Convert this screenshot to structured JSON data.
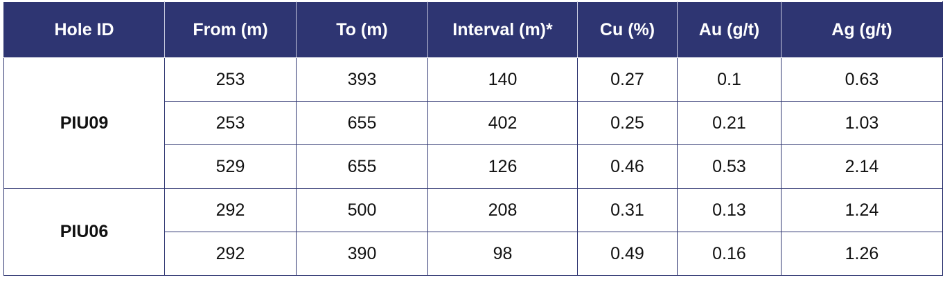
{
  "table": {
    "header": [
      "Hole ID",
      "From (m)",
      "To (m)",
      "Interval (m)*",
      "Cu (%)",
      "Au (g/t)",
      "Ag (g/t)"
    ],
    "groups": [
      {
        "hole_id": "PIU09",
        "rows": [
          [
            "253",
            "393",
            "140",
            "0.27",
            "0.1",
            "0.63"
          ],
          [
            "253",
            "655",
            "402",
            "0.25",
            "0.21",
            "1.03"
          ],
          [
            "529",
            "655",
            "126",
            "0.46",
            "0.53",
            "2.14"
          ]
        ]
      },
      {
        "hole_id": "PIU06",
        "rows": [
          [
            "292",
            "500",
            "208",
            "0.31",
            "0.13",
            "1.24"
          ],
          [
            "292",
            "390",
            "98",
            "0.49",
            "0.16",
            "1.26"
          ]
        ]
      }
    ]
  }
}
